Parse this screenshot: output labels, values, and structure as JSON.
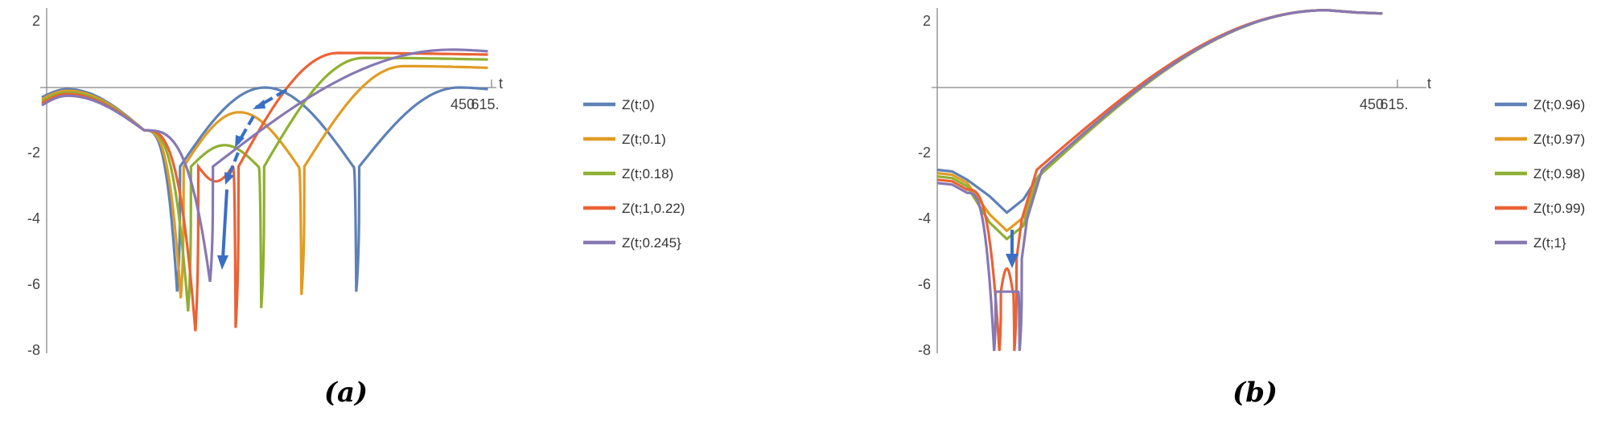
{
  "chart_data": [
    {
      "type": "line",
      "panel_label": "(a)",
      "xlabel": "t",
      "x_tick_labels": [
        "450",
        "615."
      ],
      "x_range": [
        0,
        615
      ],
      "ylim": [
        -8,
        2.5
      ],
      "y_ticks": [
        2,
        -2,
        -4,
        -6,
        -8
      ],
      "legend_placement": "right",
      "series": [
        {
          "name": "Z(t;0)",
          "color": "#5e81b5",
          "mins": [
            {
              "x": 185,
              "y": -6.2
            },
            {
              "x": 430,
              "y": -6.2
            }
          ],
          "mid_peak": {
            "x": 305,
            "y": 0
          },
          "end_y": 0.0
        },
        {
          "name": "Z(t;0.1)",
          "color": "#e19c24",
          "mins": [
            {
              "x": 190,
              "y": -6.4
            },
            {
              "x": 355,
              "y": -6.3
            }
          ],
          "mid_peak": {
            "x": 270,
            "y": -0.75
          },
          "end_y": 0.65
        },
        {
          "name": "Z(t;0.18)",
          "color": "#8fb032",
          "mins": [
            {
              "x": 200,
              "y": -6.8
            },
            {
              "x": 300,
              "y": -6.7
            }
          ],
          "mid_peak": {
            "x": 250,
            "y": -1.75
          },
          "end_y": 0.9
        },
        {
          "name": "Z(t;1,0.22)",
          "color": "#eb6235",
          "mins": [
            {
              "x": 210,
              "y": -7.4
            },
            {
              "x": 265,
              "y": -7.3
            }
          ],
          "mid_peak": {
            "x": 238,
            "y": -2.85
          },
          "end_y": 1.05
        },
        {
          "name": "Z(t;0.245}",
          "color": "#8778b3",
          "mins": [
            {
              "x": 230,
              "y": -5.9
            }
          ],
          "mid_peak": null,
          "end_y": 1.15
        }
      ]
    },
    {
      "type": "line",
      "panel_label": "(b)",
      "xlabel": "t",
      "x_tick_labels": [
        "450",
        "615."
      ],
      "x_range": [
        0,
        615
      ],
      "ylim": [
        -8,
        2.5
      ],
      "y_ticks": [
        2,
        -2,
        -4,
        -6,
        -8
      ],
      "legend_placement": "right",
      "series": [
        {
          "name": "Z(t;0.96)",
          "color": "#5e81b5",
          "start_y": -2.5,
          "min": {
            "x": 93,
            "y": -3.8
          },
          "spikes": [],
          "end_y": 2.3
        },
        {
          "name": "Z(t;0.97)",
          "color": "#e19c24",
          "start_y": -2.6,
          "min": {
            "x": 93,
            "y": -4.35
          },
          "spikes": [],
          "end_y": 2.3
        },
        {
          "name": "Z(t;0.98)",
          "color": "#8fb032",
          "start_y": -2.7,
          "min": {
            "x": 93,
            "y": -4.6
          },
          "spikes": [],
          "end_y": 2.3
        },
        {
          "name": "Z(t;0.99)",
          "color": "#eb6235",
          "start_y": -2.8,
          "min": {
            "x": 93,
            "y": -5.5
          },
          "spikes": [
            {
              "x": 83,
              "y": -8.0
            },
            {
              "x": 103,
              "y": -8.0
            }
          ],
          "end_y": 2.3
        },
        {
          "name": "Z(t;1}",
          "color": "#8778b3",
          "start_y": -2.9,
          "min": null,
          "spikes": [
            {
              "x": 76,
              "y": -8.0
            },
            {
              "x": 110,
              "y": -8.0
            }
          ],
          "end_y": 2.3
        }
      ]
    }
  ]
}
